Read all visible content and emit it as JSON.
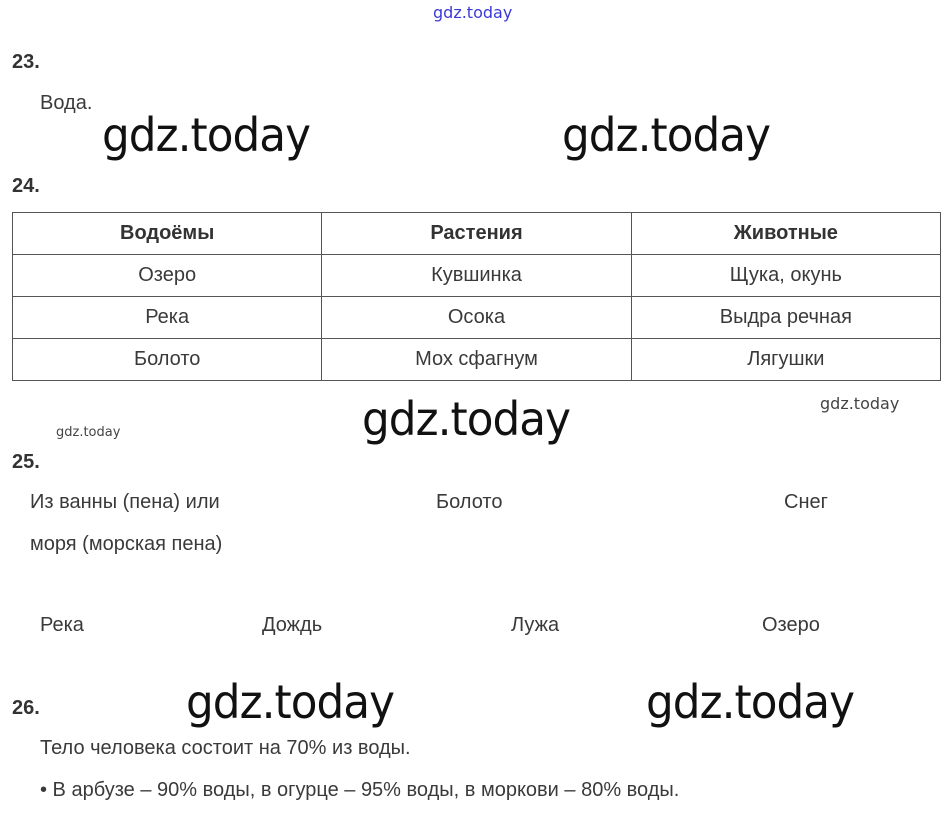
{
  "watermarks": {
    "top": "gdz.today",
    "big": "gdz.today",
    "small": "gdz.today"
  },
  "task23": {
    "number": "23.",
    "answer": "Вода."
  },
  "task24": {
    "number": "24.",
    "headers": [
      "Водоёмы",
      "Растения",
      "Животные"
    ],
    "rows": [
      [
        "Озеро",
        "Кувшинка",
        "Щука, окунь"
      ],
      [
        "Река",
        "Осока",
        "Выдра речная"
      ],
      [
        "Болото",
        "Мох сфагнум",
        "Лягушки"
      ]
    ]
  },
  "task25": {
    "number": "25.",
    "row1": [
      "Из ванны (пена) или",
      "Болото",
      "Снег"
    ],
    "row1_cont": "моря (морская пена)",
    "row2": [
      "Река",
      "Дождь",
      "Лужа",
      "Озеро"
    ]
  },
  "task26": {
    "number": "26.",
    "line1": "Тело человека состоит на 70% из воды.",
    "line2": "• В арбузе – 90% воды, в огурце – 95% воды, в моркови – 80% воды."
  }
}
